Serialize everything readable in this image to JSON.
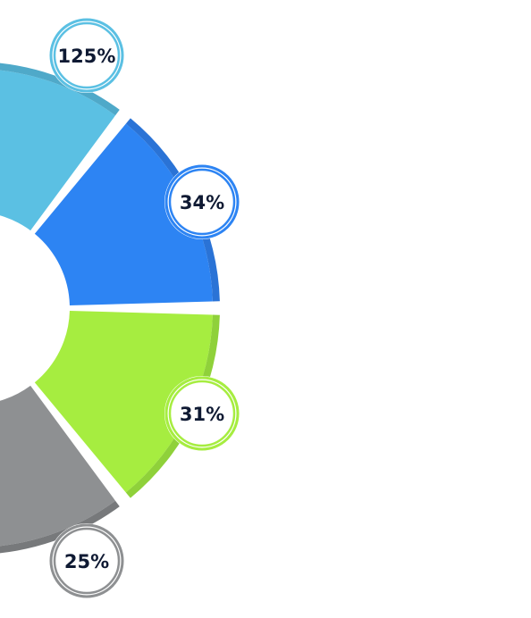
{
  "chart_data": {
    "type": "pie",
    "style": "donut",
    "title": "",
    "slices": [
      {
        "label": "125%",
        "value": 125,
        "color": "#5bc0e3",
        "shadow": "#4fa9c9"
      },
      {
        "label": "34%",
        "value": 34,
        "color": "#2d84f3",
        "shadow": "#2a73d6"
      },
      {
        "label": "31%",
        "value": 31,
        "color": "#a6ed40",
        "shadow": "#8fd13a"
      },
      {
        "label": "25%",
        "value": 25,
        "color": "#8e9092",
        "shadow": "#77797b"
      }
    ]
  }
}
